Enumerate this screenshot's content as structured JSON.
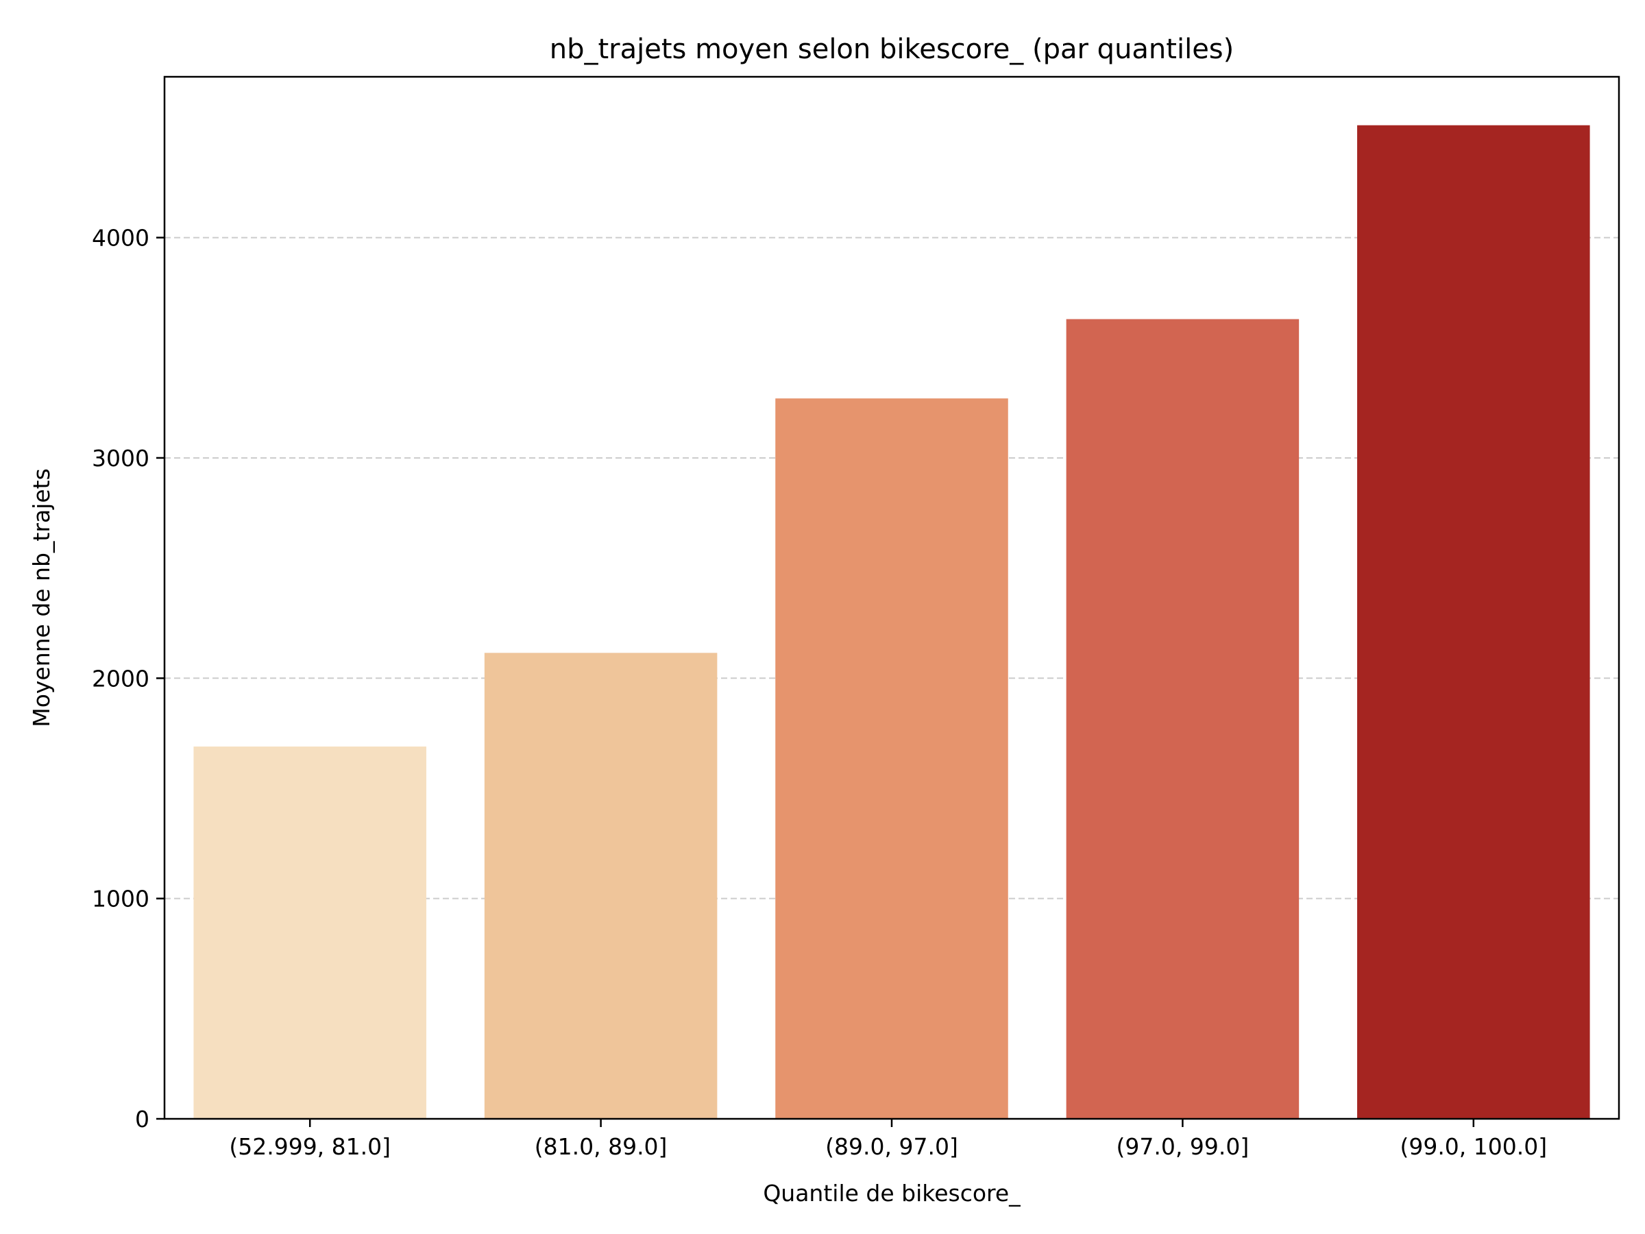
{
  "chart_data": {
    "type": "bar",
    "title": "nb_trajets moyen selon bikescore_ (par quantiles)",
    "xlabel": "Quantile de bikescore_",
    "ylabel": "Moyenne de nb_trajets",
    "categories": [
      "(52.999, 81.0]",
      "(81.0, 89.0]",
      "(89.0, 97.0]",
      "(97.0, 99.0]",
      "(99.0, 100.0]"
    ],
    "values": [
      1690,
      2115,
      3270,
      3630,
      4510
    ],
    "colors": [
      "#f6dfc0",
      "#efc59a",
      "#e6946d",
      "#d26551",
      "#a52521"
    ],
    "ylim": [
      0,
      4730
    ],
    "yticks": [
      0,
      1000,
      2000,
      3000,
      4000
    ],
    "grid": "horizontal-dashed",
    "legend": "none"
  }
}
